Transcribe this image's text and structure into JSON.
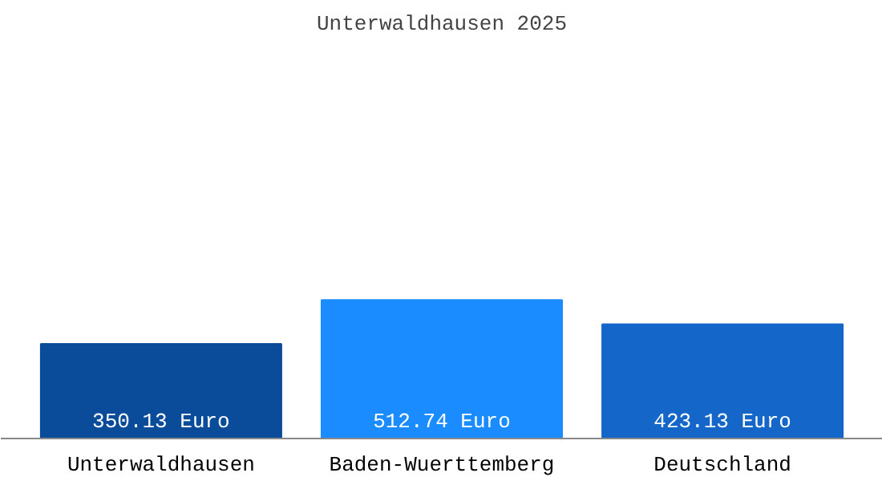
{
  "chart_data": {
    "type": "bar",
    "title": "Unterwaldhausen 2025",
    "categories": [
      "Unterwaldhausen",
      "Baden-Wuerttemberg",
      "Deutschland"
    ],
    "values": [
      350.13,
      512.74,
      423.13
    ],
    "colors": [
      "#0a4c9a",
      "#1a8cff",
      "#1466c8"
    ],
    "value_labels": [
      "350.13 Euro",
      "512.74 Euro",
      "423.13 Euro"
    ],
    "grid": false
  }
}
